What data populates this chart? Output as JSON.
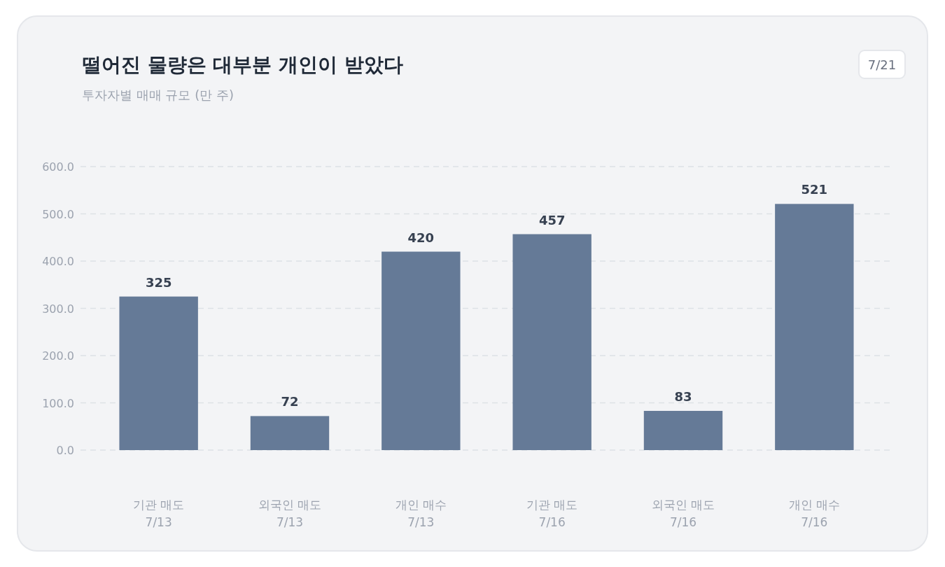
{
  "chart_data": {
    "type": "bar",
    "title": "떨어진 물량은 대부분 개인이 받았다",
    "subtitle": "투자자별 매매 규모 (만 주)",
    "annotations": [
      "7/21"
    ],
    "categories": [
      "기관 매도\n7/13",
      "외국인 매도\n7/13",
      "개인 매수\n7/13",
      "기관 매도\n7/16",
      "외국인 매도\n7/16",
      "개인 매수\n7/16"
    ],
    "values": [
      325,
      72,
      420,
      457,
      83,
      521
    ],
    "color": "#657a97",
    "ylim": [
      0,
      600
    ],
    "yticks": [
      {
        "value": 0,
        "label": "0.0"
      },
      {
        "value": 100,
        "label": "100.0"
      },
      {
        "value": 200,
        "label": "200.0"
      },
      {
        "value": 300,
        "label": "300.0"
      },
      {
        "value": 400,
        "label": "400.0"
      },
      {
        "value": 500,
        "label": "500.0"
      },
      {
        "value": 600,
        "label": "600.0"
      }
    ],
    "grid": "y",
    "data_labels": true
  }
}
